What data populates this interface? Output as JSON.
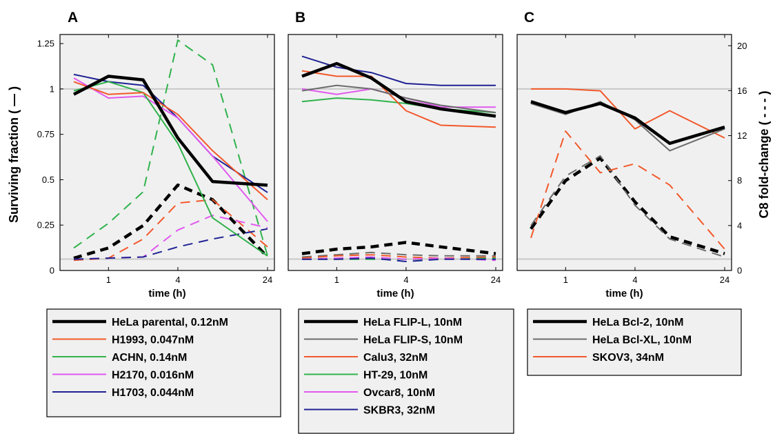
{
  "figure": {
    "left_axis_label": "Surviving  fraction  ( — )",
    "right_axis_label": "C8 fold-change ( - - - )",
    "colors": {
      "black": "#000000",
      "gray": "#6b6b6b",
      "orange": "#f2582a",
      "green": "#2fb24b",
      "magenta": "#e158f0",
      "navy": "#1f2293",
      "plot_bg": "#f0f0f0",
      "reference_line": "#c8c8c8"
    }
  },
  "chart_data": [
    {
      "type": "line",
      "panel": "A",
      "xlabel": "time (h)",
      "x": [
        0.5,
        1,
        2,
        4,
        8,
        24
      ],
      "x_ticks": [
        1,
        4,
        24
      ],
      "x_tick_labels": [
        "1",
        "4",
        "24"
      ],
      "x_scale": "log",
      "xlim": [
        0.5,
        24
      ],
      "y_left_lim": [
        0,
        1.3
      ],
      "y_left_ticks": [
        0,
        0.25,
        0.5,
        0.75,
        1,
        1.25
      ],
      "y_left_tick_labels": [
        "0",
        "0.25",
        "0.5",
        "0.75",
        "1",
        "1.25"
      ],
      "y_right_lim": [
        0,
        21
      ],
      "y_right_ticks": [],
      "reference_lines": [
        1,
        0.0625
      ],
      "series": [
        {
          "name": "HeLa parental, 0.12nM",
          "color": "#000000",
          "width": 4.5,
          "surviving": [
            0.97,
            1.07,
            1.05,
            0.73,
            0.49,
            0.47
          ],
          "c8": [
            1.1,
            2.0,
            4.0,
            7.6,
            6.3,
            1.2
          ]
        },
        {
          "name": "H1993, 0.047nM",
          "color": "#f2582a",
          "width": 2,
          "surviving": [
            1.04,
            0.97,
            0.98,
            0.86,
            0.66,
            0.39
          ],
          "c8": [
            0.9,
            1.1,
            2.8,
            6.0,
            6.3,
            2.1
          ]
        },
        {
          "name": "ACHN, 0.14nM",
          "color": "#2fb24b",
          "width": 2,
          "surviving": [
            0.99,
            1.04,
            0.98,
            0.7,
            0.29,
            0.08
          ],
          "c8": [
            2.0,
            4.2,
            7.0,
            20.5,
            18.3,
            1.3
          ]
        },
        {
          "name": "H2170, 0.016nM",
          "color": "#e158f0",
          "width": 2,
          "surviving": [
            1.06,
            0.95,
            0.96,
            0.84,
            0.63,
            0.27
          ],
          "c8": [
            1.0,
            1.1,
            1.2,
            3.6,
            4.9,
            3.8
          ]
        },
        {
          "name": "H1703, 0.044nM",
          "color": "#1f2293",
          "width": 2,
          "surviving": [
            1.08,
            1.04,
            1.02,
            0.84,
            0.63,
            0.43
          ],
          "c8": [
            1.0,
            1.1,
            1.2,
            2.1,
            2.8,
            3.7
          ]
        }
      ]
    },
    {
      "type": "line",
      "panel": "B",
      "xlabel": "time (h)",
      "x": [
        0.5,
        1,
        2,
        4,
        8,
        24
      ],
      "x_ticks": [
        1,
        4,
        24
      ],
      "x_tick_labels": [
        "1",
        "4",
        "24"
      ],
      "x_scale": "log",
      "xlim": [
        0.5,
        24
      ],
      "y_left_lim": [
        0,
        1.3
      ],
      "y_left_ticks": [],
      "y_right_lim": [
        0,
        21
      ],
      "y_right_ticks": [],
      "reference_lines": [
        1,
        0.0625
      ],
      "series": [
        {
          "name": "HeLa FLIP-L, 10nM",
          "color": "#000000",
          "width": 4.5,
          "surviving": [
            1.07,
            1.14,
            1.06,
            0.93,
            0.89,
            0.85
          ],
          "c8": [
            1.5,
            1.9,
            2.1,
            2.5,
            2.1,
            1.5
          ]
        },
        {
          "name": "HeLa FLIP-S, 10nM",
          "color": "#6b6b6b",
          "width": 2,
          "surviving": [
            0.99,
            1.02,
            1.0,
            0.95,
            0.91,
            0.87
          ],
          "c8": [
            1.2,
            1.4,
            1.6,
            1.4,
            1.3,
            1.3
          ]
        },
        {
          "name": "Calu3, 32nM",
          "color": "#f2582a",
          "width": 2,
          "surviving": [
            1.1,
            1.07,
            1.07,
            0.88,
            0.8,
            0.79
          ],
          "c8": [
            1.1,
            1.3,
            1.4,
            1.2,
            1.1,
            1.2
          ]
        },
        {
          "name": "HT-29, 10nM",
          "color": "#2fb24b",
          "width": 2,
          "surviving": [
            0.93,
            0.95,
            0.94,
            0.92,
            0.89,
            0.87
          ],
          "c8": [
            1.0,
            1.0,
            1.0,
            1.0,
            1.0,
            1.1
          ]
        },
        {
          "name": "Ovcar8, 10nM",
          "color": "#e158f0",
          "width": 2,
          "surviving": [
            1.0,
            0.97,
            1.0,
            0.95,
            0.9,
            0.9
          ],
          "c8": [
            1.0,
            1.1,
            1.2,
            1.0,
            1.1,
            0.9
          ]
        },
        {
          "name": "SKBR3, 32nM",
          "color": "#1f2293",
          "width": 2,
          "surviving": [
            1.18,
            1.12,
            1.09,
            1.03,
            1.02,
            1.02
          ],
          "c8": [
            1.0,
            1.0,
            1.1,
            0.8,
            1.0,
            1.0
          ]
        }
      ]
    },
    {
      "type": "line",
      "panel": "C",
      "xlabel": "time (h)",
      "x": [
        0.5,
        1,
        2,
        4,
        8,
        24
      ],
      "x_ticks": [
        1,
        4,
        24
      ],
      "x_tick_labels": [
        "1",
        "4",
        "24"
      ],
      "x_scale": "log",
      "xlim": [
        0.5,
        24
      ],
      "y_left_lim": [
        0,
        1.3
      ],
      "y_left_ticks": [],
      "y_right_lim": [
        0,
        21
      ],
      "y_right_ticks": [
        0,
        4,
        8,
        12,
        16,
        20
      ],
      "y_right_tick_labels": [
        "0",
        "4",
        "8",
        "12",
        "16",
        "20"
      ],
      "reference_lines": [
        1,
        0.0625
      ],
      "series": [
        {
          "name": "HeLa Bcl-2, 10nM",
          "color": "#000000",
          "width": 4.5,
          "surviving": [
            0.93,
            0.87,
            0.92,
            0.84,
            0.7,
            0.79
          ],
          "c8": [
            3.7,
            8.0,
            10.0,
            6.1,
            3.0,
            1.5
          ]
        },
        {
          "name": "HeLa Bcl-XL, 10nM",
          "color": "#6b6b6b",
          "width": 2,
          "surviving": [
            0.92,
            0.86,
            0.93,
            0.83,
            0.66,
            0.78
          ],
          "c8": [
            4.0,
            8.4,
            10.2,
            5.8,
            2.8,
            1.2
          ]
        },
        {
          "name": "SKOV3, 34nM",
          "color": "#f2582a",
          "width": 2,
          "surviving": [
            1.0,
            1.0,
            0.99,
            0.78,
            0.88,
            0.73
          ],
          "c8": [
            2.9,
            12.4,
            8.7,
            9.5,
            7.6,
            1.9
          ]
        }
      ]
    }
  ]
}
